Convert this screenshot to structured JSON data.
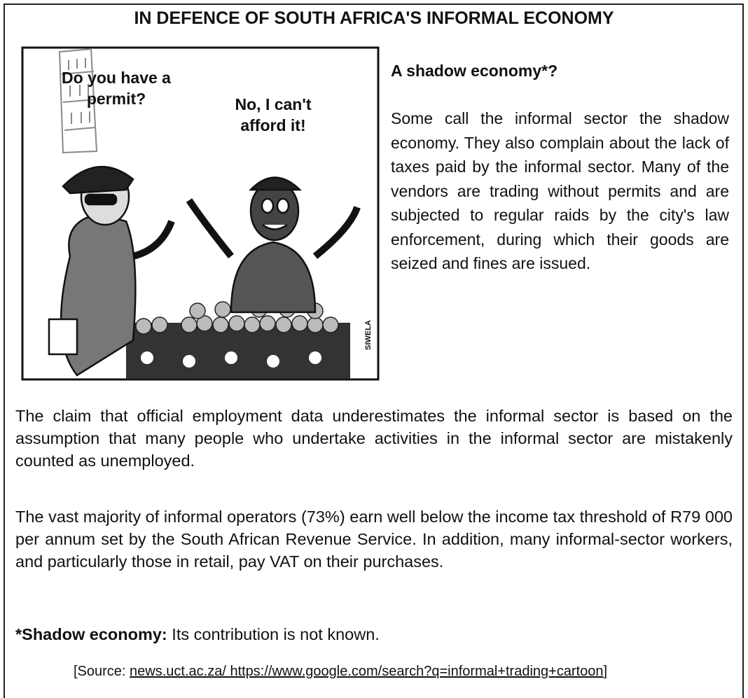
{
  "header": {
    "title": "IN DEFENCE OF SOUTH AFRICA'S INFORMAL ECONOMY"
  },
  "cartoon": {
    "speech_officer": "Do you have a permit?",
    "speech_vendor": "No, I can't afford it!",
    "signature": "SIWELA"
  },
  "sidebar": {
    "heading": "A shadow economy*?",
    "text": "Some call the informal sector the shadow economy. They also complain about the lack of taxes paid by the informal sector. Many of the vendors are trading without permits and are subjected to regular raids by the city's law enforcement, during which their goods are seized and fines are issued."
  },
  "body": {
    "paragraphs": [
      "The claim that official employment data underestimates the informal sector is based on the assumption that many people who undertake activities in the informal sector are mistakenly counted as unemployed.",
      "The vast majority of informal operators (73%) earn well below the income tax threshold of R79 000 per annum set by the South African Revenue Service. In addition, many informal-sector workers, and particularly those in retail, pay VAT on their purchases."
    ]
  },
  "footnote": {
    "term": "*Shadow economy:",
    "text": "Its contribution is not known."
  },
  "source": {
    "prefix": "[Source:",
    "link": "news.uct.ac.za/ https://www.google.com/search?q=informal+trading+cartoon",
    "suffix": "]"
  }
}
